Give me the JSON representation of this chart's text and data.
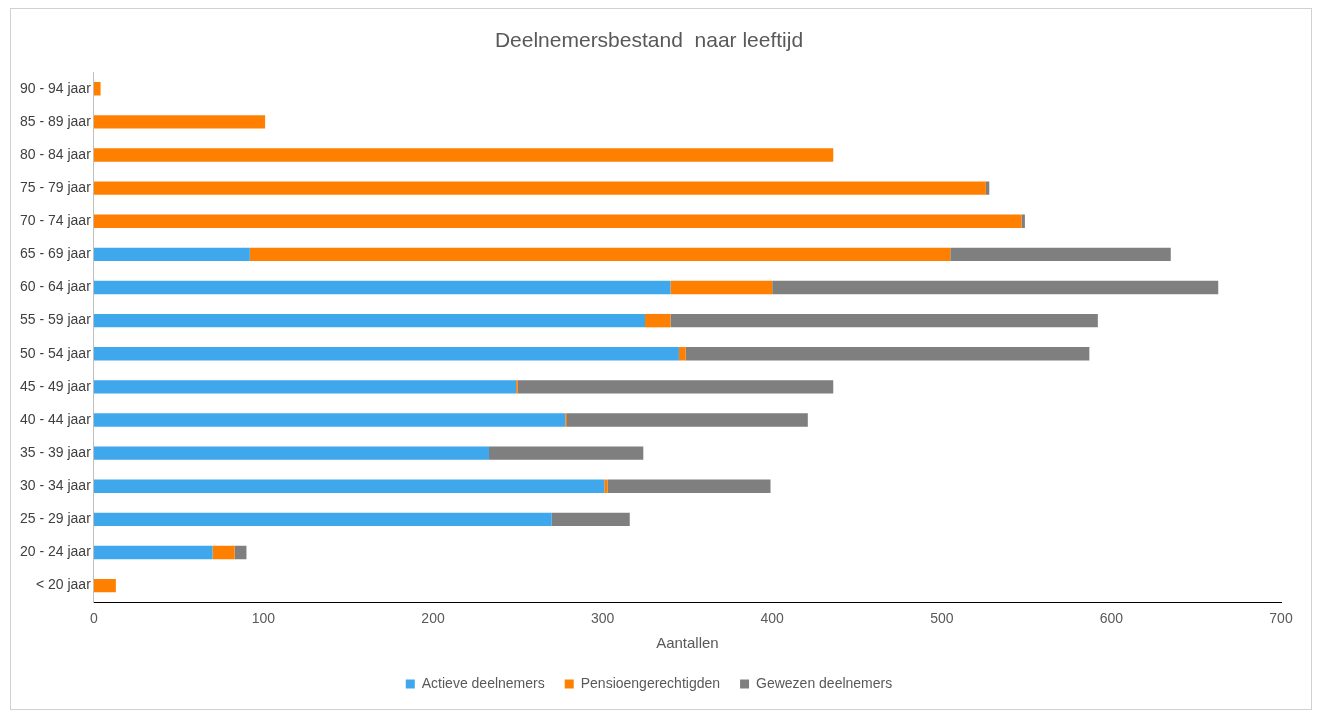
{
  "chart_data": {
    "type": "bar",
    "orientation": "horizontal",
    "stacked": true,
    "title": "Deelnemersbestand  naar leeftijd",
    "xlabel": "Aantallen",
    "categories": [
      "90 - 94 jaar",
      "85 - 89 jaar",
      "80 - 84 jaar",
      "75 - 79 jaar",
      "70 - 74 jaar",
      "65 - 69 jaar",
      "60 - 64 jaar",
      "55 - 59 jaar",
      "50 - 54 jaar",
      "45 - 49 jaar",
      "40 - 44 jaar",
      "35 - 39 jaar",
      "30 - 34 jaar",
      "25 - 29 jaar",
      "20 - 24 jaar",
      "< 20 jaar"
    ],
    "series": [
      {
        "name": "Actieve deelnemers",
        "color": "#3fa7ec",
        "values": [
          0,
          0,
          0,
          0,
          0,
          92,
          340,
          325,
          345,
          249,
          278,
          233,
          301,
          270,
          70,
          0
        ]
      },
      {
        "name": "Pensioengerechtigden",
        "color": "#ff8000",
        "values": [
          4,
          101,
          436,
          526,
          547,
          413,
          60,
          15,
          4,
          1,
          1,
          0,
          2,
          0,
          13,
          13
        ]
      },
      {
        "name": "Gewezen deelnemers",
        "color": "#7f7f7f",
        "values": [
          0,
          0,
          0,
          2,
          2,
          130,
          263,
          252,
          238,
          186,
          142,
          91,
          96,
          46,
          7,
          0
        ]
      }
    ],
    "xlim": [
      0,
      700
    ],
    "xticks": [
      0,
      100,
      200,
      300,
      400,
      500,
      600,
      700
    ],
    "grid": false,
    "legend": "bottom"
  }
}
